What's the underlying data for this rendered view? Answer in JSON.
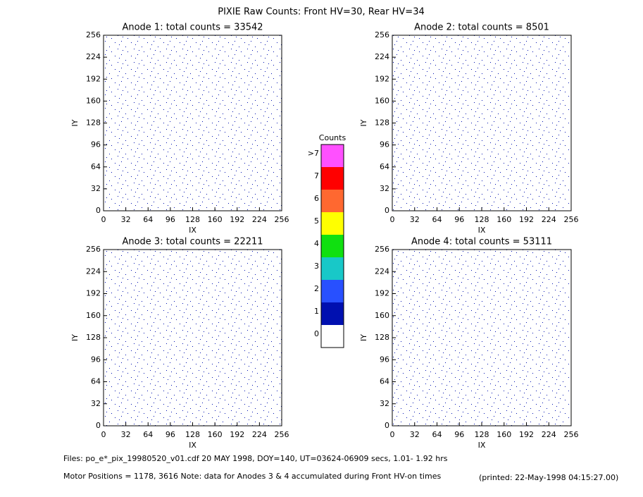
{
  "title": "PIXIE Raw Counts:  Front HV=30, Rear HV=34",
  "chart_data": [
    {
      "type": "image",
      "title": "Anode 1: total counts = 33542",
      "x_label": "IX",
      "y_label": "IY",
      "xlim": [
        0,
        256
      ],
      "ylim": [
        0,
        256
      ],
      "xticks": [
        0,
        32,
        64,
        96,
        128,
        160,
        192,
        224,
        256
      ],
      "yticks": [
        0,
        32,
        64,
        96,
        128,
        160,
        192,
        224,
        256
      ]
    },
    {
      "type": "image",
      "title": "Anode 2: total counts = 8501",
      "x_label": "IX",
      "y_label": "IY",
      "xlim": [
        0,
        256
      ],
      "ylim": [
        0,
        256
      ],
      "xticks": [
        0,
        32,
        64,
        96,
        128,
        160,
        192,
        224,
        256
      ],
      "yticks": [
        0,
        32,
        64,
        96,
        128,
        160,
        192,
        224,
        256
      ]
    },
    {
      "type": "image",
      "title": "Anode 3: total counts = 22211",
      "x_label": "IX",
      "y_label": "IY",
      "xlim": [
        0,
        256
      ],
      "ylim": [
        0,
        256
      ],
      "xticks": [
        0,
        32,
        64,
        96,
        128,
        160,
        192,
        224,
        256
      ],
      "yticks": [
        0,
        32,
        64,
        96,
        128,
        160,
        192,
        224,
        256
      ]
    },
    {
      "type": "image",
      "title": "Anode 4: total counts = 53111",
      "x_label": "IX",
      "y_label": "IY",
      "xlim": [
        0,
        256
      ],
      "ylim": [
        0,
        256
      ],
      "xticks": [
        0,
        32,
        64,
        96,
        128,
        160,
        192,
        224,
        256
      ],
      "yticks": [
        0,
        32,
        64,
        96,
        128,
        160,
        192,
        224,
        256
      ]
    }
  ],
  "colorbar": {
    "title": "Counts",
    "labels": [
      "0",
      "1",
      "2",
      "3",
      "4",
      "5",
      "6",
      "7",
      ">7"
    ],
    "colors": [
      "#ffffff",
      "#0010b0",
      "#2850ff",
      "#18c8c8",
      "#10e010",
      "#ffff00",
      "#ff6830",
      "#ff0000",
      "#ff50ff"
    ]
  },
  "footer": {
    "files": "Files: po_e*_pix_19980520_v01.cdf    20 MAY 1998, DOY=140, UT=03624-06909 secs,   1.01- 1.92 hrs",
    "motor": "Motor Positions = 1178, 3616    Note: data for Anodes 3 & 4 accumulated during Front HV-on times",
    "printed": "(printed: 22-May-1998 04:15:27.00)"
  }
}
